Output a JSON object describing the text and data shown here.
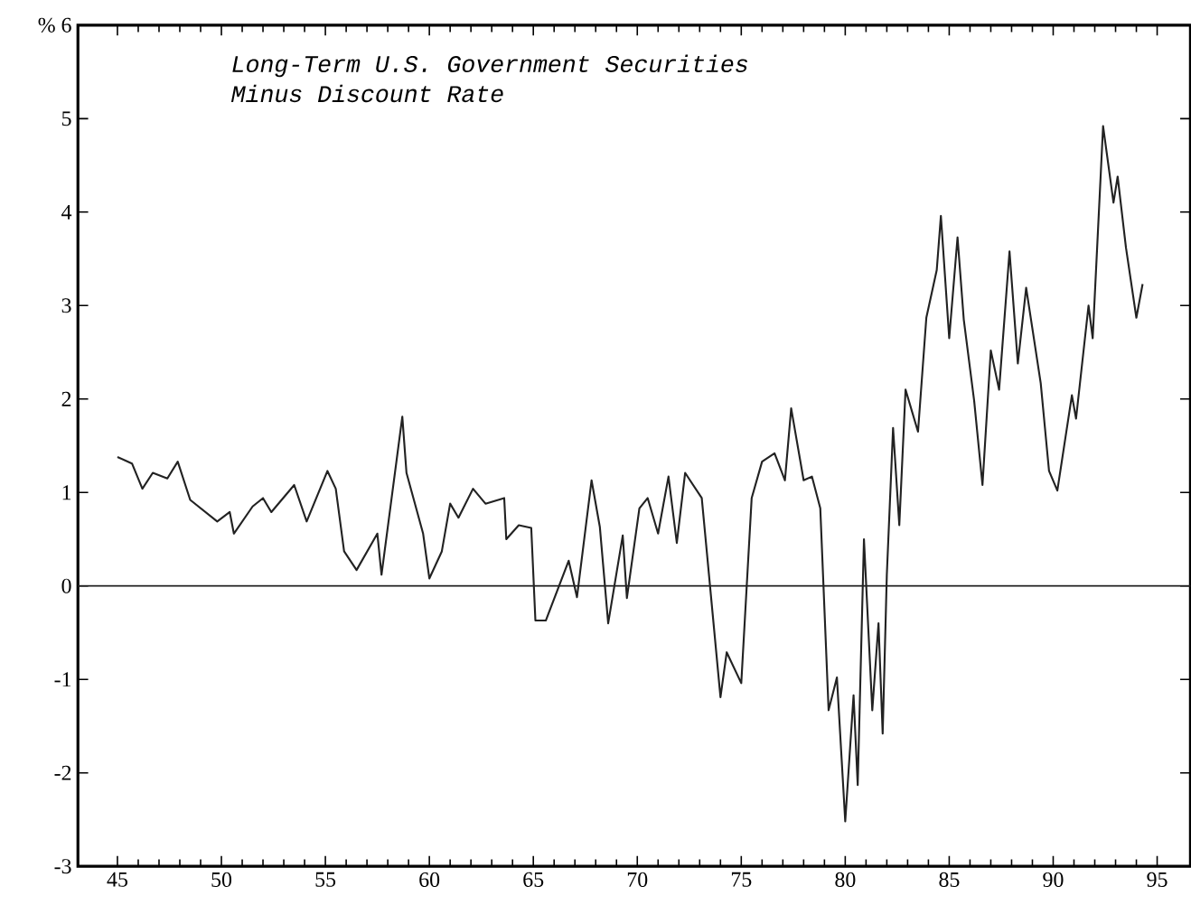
{
  "chart_data": {
    "type": "line",
    "title": "Long-Term U.S. Government Securities",
    "subtitle": "Minus Discount Rate",
    "x": [
      45.0,
      45.7,
      46.2,
      46.7,
      47.4,
      47.9,
      48.5,
      49.8,
      50.4,
      50.6,
      51.5,
      52.0,
      52.4,
      53.5,
      54.1,
      55.1,
      55.5,
      55.9,
      56.5,
      57.5,
      57.7,
      58.7,
      58.9,
      59.7,
      60.0,
      60.6,
      61.0,
      61.4,
      62.1,
      62.7,
      63.6,
      63.7,
      64.3,
      64.9,
      65.1,
      65.6,
      66.7,
      67.1,
      67.8,
      68.2,
      68.6,
      69.3,
      69.5,
      70.1,
      70.5,
      71.0,
      71.5,
      71.9,
      72.3,
      73.1,
      74.0,
      74.3,
      75.0,
      75.5,
      76.0,
      76.6,
      77.1,
      77.4,
      78.0,
      78.4,
      78.8,
      79.2,
      79.6,
      80.0,
      80.4,
      80.6,
      80.9,
      81.3,
      81.6,
      81.8,
      82.0,
      82.3,
      82.6,
      82.9,
      83.5,
      83.9,
      84.4,
      84.6,
      85.0,
      85.4,
      85.7,
      86.2,
      86.6,
      87.0,
      87.4,
      87.9,
      88.3,
      88.7,
      89.4,
      89.8,
      90.2,
      90.9,
      91.1,
      91.7,
      91.9,
      92.4,
      92.9,
      93.1,
      93.5,
      94.0,
      94.3
    ],
    "values": [
      1.38,
      1.31,
      1.04,
      1.21,
      1.15,
      1.33,
      0.92,
      0.69,
      0.79,
      0.56,
      0.85,
      0.94,
      0.79,
      1.08,
      0.69,
      1.23,
      1.04,
      0.37,
      0.17,
      0.56,
      0.12,
      1.81,
      1.21,
      0.56,
      0.08,
      0.37,
      0.88,
      0.73,
      1.04,
      0.88,
      0.94,
      0.5,
      0.65,
      0.62,
      -0.37,
      -0.37,
      0.27,
      -0.12,
      1.13,
      0.63,
      -0.4,
      0.54,
      -0.13,
      0.83,
      0.94,
      0.56,
      1.17,
      0.46,
      1.21,
      0.94,
      -1.19,
      -0.71,
      -1.04,
      0.94,
      1.33,
      1.42,
      1.13,
      1.9,
      1.13,
      1.17,
      0.83,
      -1.33,
      -0.98,
      -2.52,
      -1.17,
      -2.13,
      0.5,
      -1.33,
      -0.4,
      -1.58,
      0.12,
      1.69,
      0.65,
      2.1,
      1.65,
      2.87,
      3.38,
      3.96,
      2.65,
      3.73,
      2.85,
      1.98,
      1.08,
      2.52,
      2.1,
      3.58,
      2.38,
      3.19,
      2.17,
      1.23,
      1.02,
      2.04,
      1.79,
      3.0,
      2.65,
      4.92,
      4.1,
      4.38,
      3.62,
      2.87,
      3.23
    ],
    "color": "#222222",
    "xlim": [
      43.1,
      96.6
    ],
    "ylim": [
      -3,
      6
    ],
    "xticks": [
      45,
      50,
      55,
      60,
      65,
      70,
      75,
      80,
      85,
      90,
      95
    ],
    "yticks": [
      -3,
      -2,
      -1,
      0,
      1,
      2,
      3,
      4,
      5,
      {
        "value": 6,
        "label": "% 6"
      }
    ],
    "ref_lines": [
      {
        "axis": "y",
        "value": 0,
        "color": "#222222"
      }
    ],
    "grid": false,
    "marker": "none",
    "line_style": "solid"
  }
}
